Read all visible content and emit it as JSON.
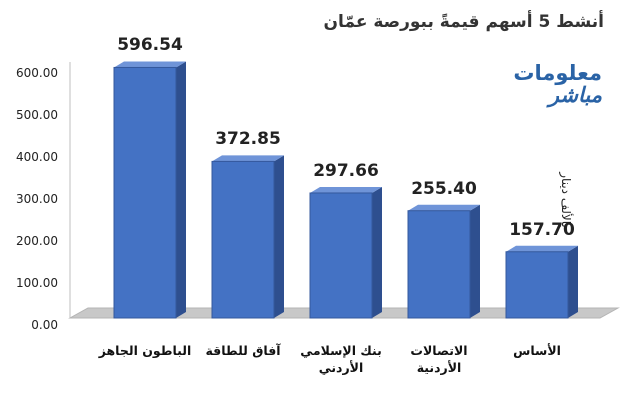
{
  "title": "أنشط 5 أسهم قيمةً ببورصة عمّان",
  "logo": {
    "line1": "معلومات",
    "line2": "مباشر"
  },
  "unit_label": "بالألف دينار",
  "chart_data": {
    "type": "bar",
    "title": "أنشط 5 أسهم قيمةً ببورصة عمّان",
    "ylabel": "بالألف دينار",
    "xlabel": "",
    "ylim": [
      0,
      600
    ],
    "yticks": [
      "0.00",
      "100.00",
      "200.00",
      "300.00",
      "400.00",
      "500.00",
      "600.00"
    ],
    "categories": [
      "الباطون الجاهز",
      "آفاق للطاقة",
      "بنك الإسلامي الأردني",
      "الاتصالات الأردنية",
      "الأساس"
    ],
    "category_labels": [
      [
        "الباطون الجاهز"
      ],
      [
        "آفاق للطاقة"
      ],
      [
        "بنك الإسلامي",
        "الأردني"
      ],
      [
        "الاتصالات",
        "الأردنية"
      ],
      [
        "الأساس"
      ]
    ],
    "values": [
      596.54,
      372.85,
      297.66,
      255.4,
      157.7
    ],
    "data_labels": [
      "596.54",
      "372.85",
      "297.66",
      "255.40",
      "157.70"
    ],
    "grid": false,
    "style": "3d",
    "colors": {
      "bar_front": "#4472c4",
      "bar_side": "#2e4f8f",
      "bar_top": "#6f94d8",
      "floor": "#c8c8c8"
    }
  }
}
